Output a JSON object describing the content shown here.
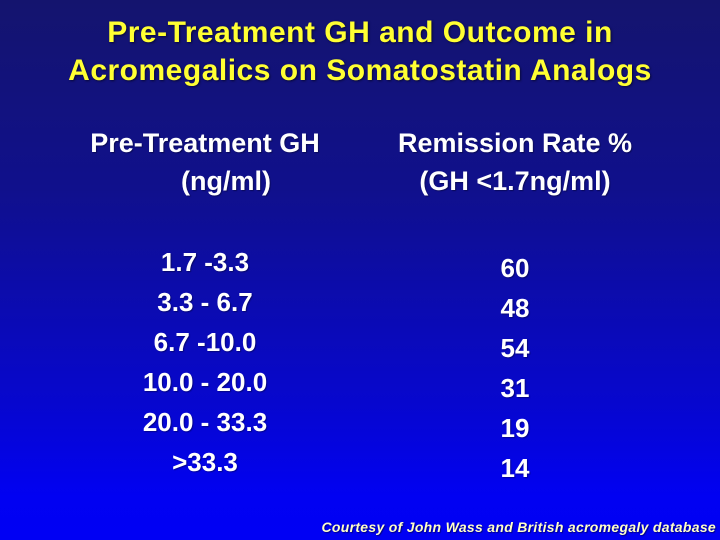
{
  "slide": {
    "title": {
      "line1": "Pre-Treatment GH and Outcome in",
      "line2": "Acromegalics on Somatostatin Analogs"
    },
    "table": {
      "columns": [
        {
          "header_line1": "Pre-Treatment GH",
          "header_line2": "(ng/ml)"
        },
        {
          "header_line1": "Remission Rate %",
          "header_line2": "(GH <1.7ng/ml)"
        }
      ],
      "rows": [
        {
          "gh_range": "1.7 -3.3",
          "remission_rate": "60"
        },
        {
          "gh_range": "3.3 - 6.7",
          "remission_rate": "48"
        },
        {
          "gh_range": "6.7 -10.0",
          "remission_rate": "54"
        },
        {
          "gh_range": "10.0 - 20.0",
          "remission_rate": "31"
        },
        {
          "gh_range": "20.0 - 33.3",
          "remission_rate": "19"
        },
        {
          "gh_range": ">33.3",
          "remission_rate": "14"
        }
      ]
    },
    "footer": "Courtesy of John Wass and British acromegaly database",
    "colors": {
      "title_text": "#ffff33",
      "body_text": "#ffffff",
      "footer_text": "#ffffc8",
      "background_top": "#14146e",
      "background_bottom": "#0000f4"
    }
  },
  "chart_data": {
    "type": "table",
    "title": "Pre-Treatment GH and Outcome in Acromegalics on Somatostatin Analogs",
    "columns": [
      "Pre-Treatment GH (ng/ml)",
      "Remission Rate % (GH <1.7ng/ml)"
    ],
    "categories": [
      "1.7 -3.3",
      "3.3 - 6.7",
      "6.7 -10.0",
      "10.0 - 20.0",
      "20.0 - 33.3",
      ">33.3"
    ],
    "values": [
      60,
      48,
      54,
      31,
      19,
      14
    ],
    "footnote": "Courtesy of John Wass and British acromegaly database"
  }
}
